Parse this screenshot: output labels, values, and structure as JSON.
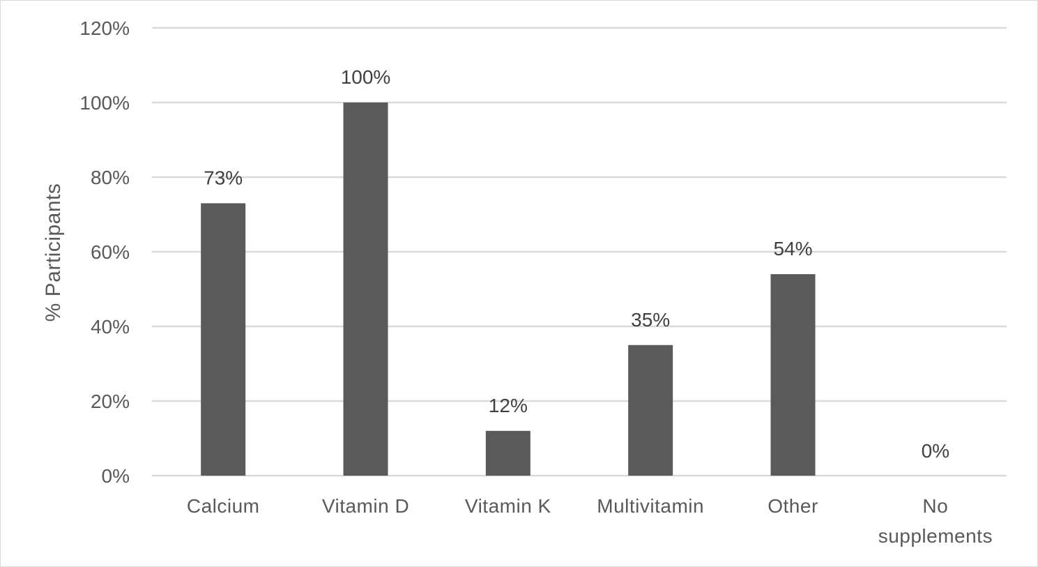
{
  "chart_data": {
    "type": "bar",
    "categories": [
      [
        "Calcium"
      ],
      [
        "Vitamin D"
      ],
      [
        "Vitamin K"
      ],
      [
        "Multivitamin"
      ],
      [
        "Other"
      ],
      [
        "No",
        "supplements"
      ]
    ],
    "values": [
      73,
      100,
      12,
      35,
      54,
      0
    ],
    "data_labels": [
      "73%",
      "100%",
      "12%",
      "35%",
      "54%",
      "0%"
    ],
    "ylabel": "%  Participants",
    "ylim": [
      0,
      120
    ],
    "yticks": [
      0,
      20,
      40,
      60,
      80,
      100,
      120
    ],
    "ytick_labels": [
      "0%",
      "20%",
      "40%",
      "60%",
      "80%",
      "100%",
      "120%"
    ],
    "grid": true,
    "bar_color": "#5a5a5a",
    "grid_color": "#d9d9d9",
    "axis_color": "#d9d9d9"
  }
}
